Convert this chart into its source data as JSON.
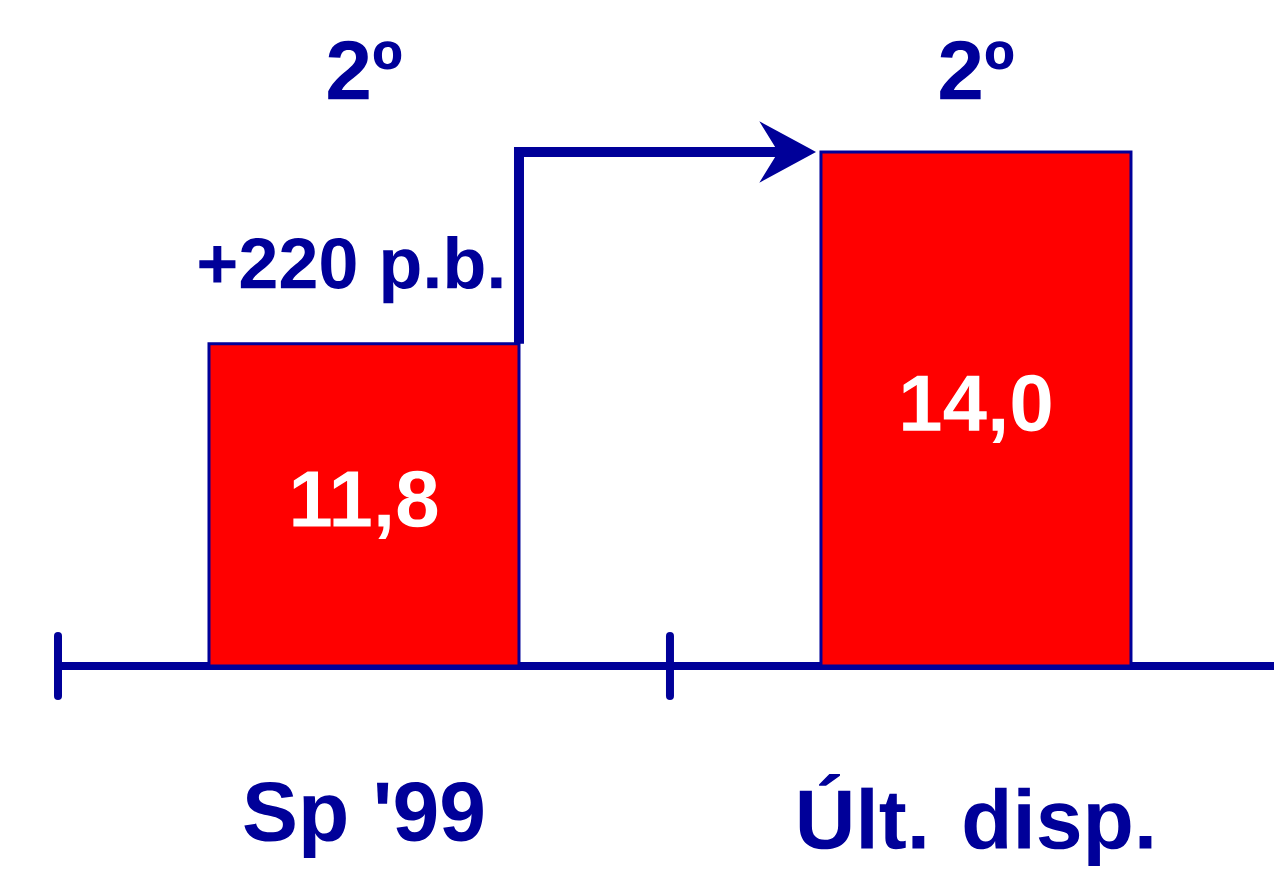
{
  "chart_data": {
    "type": "bar",
    "categories": [
      "Sp '99",
      "Últ. disp."
    ],
    "values": [
      11.8,
      14.0
    ],
    "value_labels": [
      "11,8",
      "14,0"
    ],
    "color": "#ff0000",
    "ylim": [
      8.1,
      14.0
    ],
    "tick_labels": "x",
    "annotations": [
      "2º",
      "2º",
      "+220 p.b."
    ]
  }
}
